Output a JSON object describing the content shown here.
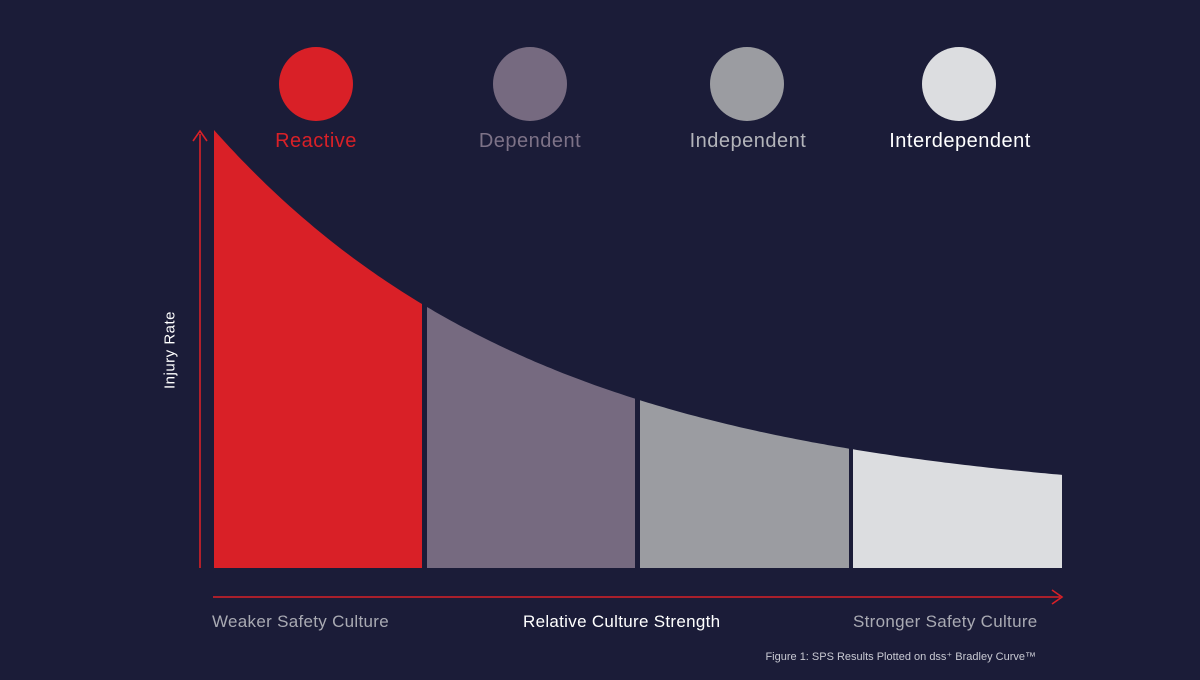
{
  "stages": [
    {
      "label": "Reactive",
      "color": "#d92027",
      "text_color": "#d92027"
    },
    {
      "label": "Dependent",
      "color": "#766a80",
      "text_color": "#7d7287"
    },
    {
      "label": "Independent",
      "color": "#9b9ca1",
      "text_color": "#b3b4ba"
    },
    {
      "label": "Interdependent",
      "color": "#dcdde0",
      "text_color": "#ffffff"
    }
  ],
  "axes": {
    "y_label": "Injury Rate",
    "x_left": "Weaker Safety Culture",
    "x_center": "Relative Culture Strength",
    "x_right": "Stronger Safety Culture",
    "axis_color": "#d92027"
  },
  "caption": "Figure 1: SPS Results Plotted on dss⁺ Bradley Curve™"
}
